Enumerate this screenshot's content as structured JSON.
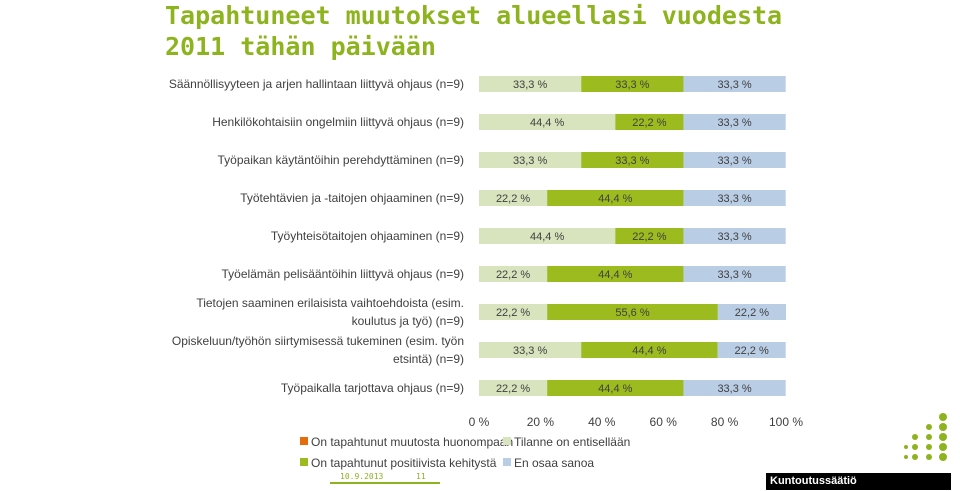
{
  "title_lines": [
    "Tapahtuneet muutokset alueellasi vuodesta",
    "2011 tähän päivään"
  ],
  "footer": {
    "date": "10.9.2013",
    "page": "11",
    "brand": "Kuntoutussäätiö"
  },
  "colors": {
    "title": "#8DB31E",
    "On tapahtunut muutosta huonompaan": "#E46C0A",
    "Tilanne on entisellään": "#D7E4BD",
    "On tapahtunut positiivista kehitystä": "#9BBB1F",
    "En osaa sanoa": "#B9CDE5"
  },
  "chart_data": {
    "type": "bar",
    "orientation": "horizontal",
    "stacked": true,
    "percent": true,
    "categories": [
      [
        "Säännöllisyyteen ja arjen hallintaan liittyvä ohjaus (n=9)"
      ],
      [
        "Henkilökohtaisiin ongelmiin liittyvä ohjaus (n=9)"
      ],
      [
        "Työpaikan käytäntöihin perehdyttäminen (n=9)"
      ],
      [
        "Työtehtävien ja -taitojen ohjaaminen (n=9)"
      ],
      [
        "Työyhteisötaitojen ohjaaminen (n=9)"
      ],
      [
        "Työelämän pelisääntöihin liittyvä ohjaus (n=9)"
      ],
      [
        "Tietojen saaminen erilaisista vaihtoehdoista (esim.",
        "koulutus ja työ) (n=9)"
      ],
      [
        "Opiskeluun/työhön siirtymisessä tukeminen (esim. työn",
        "etsintä) (n=9)"
      ],
      [
        "Työpaikalla tarjottava ohjaus (n=9)"
      ]
    ],
    "series": [
      {
        "name": "On tapahtunut muutosta huonompaan",
        "values": [
          0,
          0,
          0,
          0,
          0,
          0,
          0,
          0,
          0
        ],
        "labels": [
          "",
          "",
          "",
          "",
          "",
          "",
          "",
          "",
          ""
        ]
      },
      {
        "name": "Tilanne on entisellään",
        "values": [
          33.3,
          44.4,
          33.3,
          22.2,
          44.4,
          22.2,
          22.2,
          33.3,
          22.2
        ],
        "labels": [
          "33,3 %",
          "44,4 %",
          "33,3 %",
          "22,2 %",
          "44,4 %",
          "22,2 %",
          "22,2 %",
          "33,3 %",
          "22,2 %"
        ]
      },
      {
        "name": "On tapahtunut positiivista kehitystä",
        "values": [
          33.3,
          22.2,
          33.3,
          44.4,
          22.2,
          44.4,
          55.6,
          44.4,
          44.4
        ],
        "labels": [
          "33,3 %",
          "22,2 %",
          "33,3 %",
          "44,4 %",
          "22,2 %",
          "44,4 %",
          "55,6 %",
          "44,4 %",
          "44,4 %"
        ]
      },
      {
        "name": "En osaa sanoa",
        "values": [
          33.3,
          33.3,
          33.3,
          33.3,
          33.3,
          33.3,
          22.2,
          22.2,
          33.3
        ],
        "labels": [
          "33,3 %",
          "33,3 %",
          "33,3 %",
          "33,3 %",
          "33,3 %",
          "33,3 %",
          "22,2 %",
          "22,2 %",
          "33,3 %"
        ]
      }
    ],
    "xlim": [
      0,
      100
    ],
    "xticks": [
      "0 %",
      "20 %",
      "40 %",
      "60 %",
      "80 %",
      "100 %"
    ],
    "grid": false,
    "legend_position": "bottom"
  }
}
